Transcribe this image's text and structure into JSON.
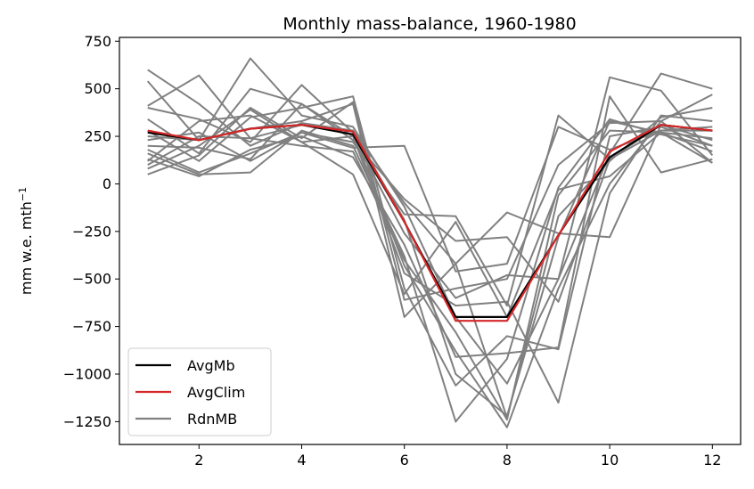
{
  "chart_data": {
    "type": "line",
    "title": "Monthly mass-balance, 1960-1980",
    "xlabel": "",
    "ylabel": "mm w.e. mth",
    "ylabel_sup": "−1",
    "xlim": [
      0.45,
      12.55
    ],
    "ylim": [
      -1370,
      770
    ],
    "x_ticks": [
      2,
      4,
      6,
      8,
      10,
      12
    ],
    "y_ticks": [
      750,
      500,
      250,
      0,
      -250,
      -500,
      -750,
      -1000,
      -1250
    ],
    "x": [
      1,
      2,
      3,
      4,
      5,
      6,
      7,
      8,
      9,
      10,
      11,
      12
    ],
    "legend_position": "lower-left",
    "colors": {
      "AvgMb": "#000000",
      "AvgClim": "#d62728",
      "RdnMB": "#808080"
    },
    "series": [
      {
        "name": "AvgMb",
        "values": [
          270,
          230,
          290,
          310,
          260,
          -200,
          -700,
          -700,
          -270,
          140,
          310,
          280
        ]
      },
      {
        "name": "AvgClim",
        "values": [
          280,
          230,
          290,
          310,
          275,
          -200,
          -720,
          -720,
          -270,
          170,
          310,
          280
        ]
      }
    ],
    "random_series_name": "RdnMB",
    "random_series": [
      [
        600,
        420,
        200,
        320,
        280,
        -100,
        -420,
        -1230,
        -170,
        120,
        350,
        400
      ],
      [
        540,
        230,
        660,
        360,
        300,
        -120,
        -700,
        -1050,
        -500,
        160,
        580,
        500
      ],
      [
        410,
        570,
        240,
        310,
        280,
        -190,
        -1000,
        -1220,
        -280,
        330,
        270,
        240
      ],
      [
        400,
        340,
        220,
        520,
        270,
        -430,
        -880,
        -1280,
        -550,
        0,
        330,
        470
      ],
      [
        340,
        160,
        500,
        420,
        250,
        -470,
        -640,
        -620,
        -1150,
        -50,
        360,
        330
      ],
      [
        280,
        120,
        350,
        400,
        460,
        -550,
        -1060,
        -800,
        -870,
        250,
        300,
        200
      ],
      [
        250,
        230,
        290,
        330,
        420,
        -700,
        -420,
        -150,
        -260,
        -280,
        310,
        230
      ],
      [
        230,
        270,
        120,
        270,
        190,
        200,
        -460,
        -420,
        300,
        180,
        280,
        300
      ],
      [
        200,
        190,
        130,
        420,
        230,
        -80,
        -300,
        -280,
        -620,
        130,
        310,
        280
      ],
      [
        180,
        60,
        160,
        270,
        220,
        -160,
        -170,
        -640,
        360,
        130,
        280,
        280
      ],
      [
        160,
        50,
        60,
        280,
        200,
        -380,
        -1250,
        -920,
        -20,
        340,
        260,
        200
      ],
      [
        130,
        40,
        180,
        250,
        140,
        -320,
        -910,
        -890,
        -860,
        460,
        60,
        130
      ],
      [
        120,
        330,
        360,
        220,
        250,
        -260,
        -600,
        -480,
        -500,
        560,
        490,
        150
      ],
      [
        100,
        250,
        240,
        200,
        170,
        -400,
        -780,
        -1240,
        -60,
        280,
        270,
        170
      ],
      [
        80,
        200,
        390,
        220,
        50,
        -580,
        -200,
        -700,
        -30,
        40,
        270,
        110
      ],
      [
        50,
        150,
        400,
        240,
        430,
        -610,
        -550,
        -500,
        100,
        320,
        330,
        110
      ]
    ]
  }
}
